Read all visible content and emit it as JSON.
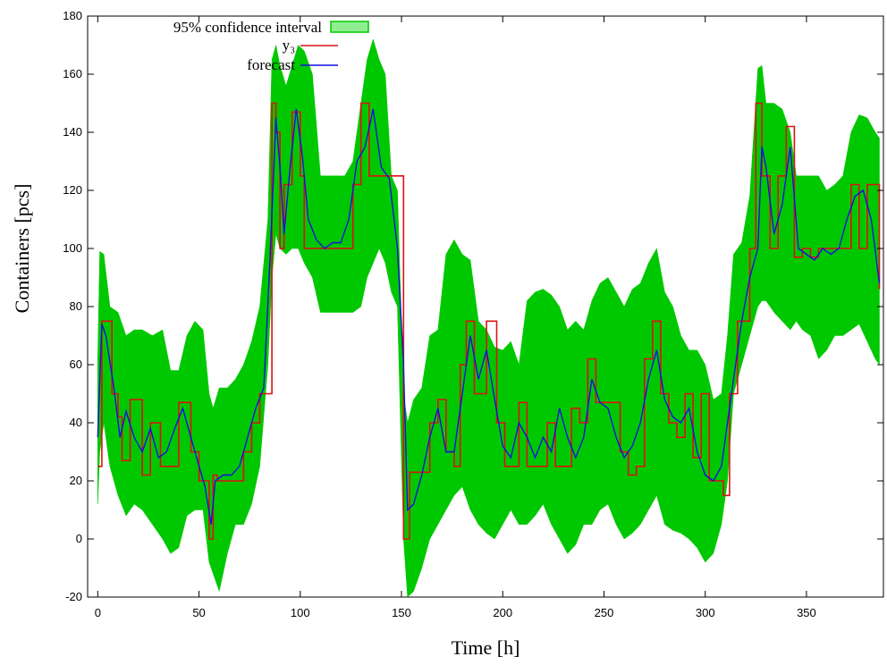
{
  "chart_data": {
    "type": "line",
    "xlabel": "Time [h]",
    "ylabel": "Containers [pcs]",
    "xlim": [
      -5,
      388
    ],
    "ylim": [
      -20,
      180
    ],
    "xticks": [
      0,
      50,
      100,
      150,
      200,
      250,
      300,
      350
    ],
    "yticks": [
      -20,
      0,
      20,
      40,
      60,
      80,
      100,
      120,
      140,
      160,
      180
    ],
    "legend_position": "top-left",
    "grid": false,
    "series": [
      {
        "name": "95% confidence interval",
        "kind": "band",
        "color": "#00c800",
        "legend_swatch_color": "#90ee90",
        "x": [
          0,
          1,
          3,
          6,
          10,
          14,
          18,
          22,
          27,
          32,
          36,
          40,
          44,
          48,
          52,
          55,
          57,
          60,
          64,
          68,
          72,
          76,
          80,
          84,
          86,
          88,
          90,
          93,
          96,
          99,
          102,
          106,
          110,
          114,
          118,
          122,
          126,
          130,
          133,
          136,
          139,
          142,
          145,
          148,
          151,
          153,
          156,
          160,
          164,
          168,
          172,
          176,
          180,
          184,
          188,
          192,
          196,
          200,
          204,
          208,
          212,
          216,
          220,
          224,
          228,
          232,
          236,
          240,
          244,
          248,
          252,
          256,
          260,
          264,
          268,
          272,
          276,
          280,
          284,
          288,
          292,
          296,
          300,
          304,
          308,
          311,
          314,
          318,
          322,
          326,
          328,
          330,
          334,
          338,
          342,
          345,
          348,
          352,
          356,
          360,
          364,
          368,
          372,
          376,
          380,
          384,
          386
        ],
        "upper": [
          62,
          99,
          98,
          80,
          78,
          70,
          72,
          72,
          70,
          72,
          58,
          58,
          70,
          75,
          72,
          50,
          45,
          52,
          52,
          55,
          60,
          68,
          80,
          110,
          165,
          170,
          163,
          156,
          163,
          170,
          168,
          160,
          125,
          125,
          125,
          125,
          130,
          150,
          165,
          172,
          165,
          160,
          125,
          120,
          50,
          40,
          48,
          52,
          70,
          72,
          98,
          103,
          98,
          96,
          75,
          72,
          66,
          65,
          68,
          60,
          82,
          85,
          86,
          84,
          80,
          72,
          75,
          72,
          82,
          88,
          90,
          85,
          80,
          86,
          88,
          95,
          100,
          85,
          80,
          70,
          65,
          65,
          60,
          48,
          50,
          70,
          98,
          102,
          118,
          162,
          163,
          150,
          150,
          148,
          140,
          125,
          125,
          125,
          125,
          120,
          122,
          125,
          140,
          146,
          145,
          140,
          138
        ],
        "lower": [
          12,
          30,
          40,
          25,
          15,
          8,
          12,
          10,
          5,
          0,
          -5,
          -3,
          8,
          10,
          10,
          -8,
          -12,
          -18,
          -5,
          5,
          5,
          12,
          25,
          60,
          90,
          105,
          100,
          98,
          100,
          100,
          95,
          90,
          78,
          78,
          78,
          78,
          78,
          80,
          90,
          95,
          100,
          95,
          85,
          80,
          0,
          -20,
          -18,
          -10,
          0,
          5,
          10,
          15,
          18,
          10,
          5,
          2,
          0,
          5,
          10,
          5,
          5,
          8,
          12,
          5,
          0,
          -5,
          -2,
          5,
          5,
          10,
          12,
          5,
          0,
          2,
          5,
          10,
          15,
          5,
          3,
          2,
          0,
          -3,
          -8,
          -5,
          5,
          20,
          50,
          60,
          70,
          80,
          82,
          82,
          78,
          75,
          72,
          75,
          72,
          70,
          62,
          65,
          70,
          70,
          72,
          74,
          68,
          62,
          60
        ]
      },
      {
        "name": "y₃",
        "kind": "step",
        "color": "#dd1111",
        "x": [
          0,
          2,
          7,
          10,
          12,
          16,
          22,
          26,
          31,
          37,
          40,
          46,
          50,
          55,
          57,
          59,
          63,
          72,
          76,
          80,
          84,
          86,
          88,
          90,
          92,
          96,
          100,
          102,
          106,
          110,
          114,
          126,
          130,
          134,
          138,
          142,
          146,
          151,
          154,
          159,
          164,
          168,
          172,
          176,
          179,
          182,
          186,
          192,
          197,
          201,
          204,
          208,
          212,
          218,
          222,
          226,
          230,
          234,
          238,
          242,
          246,
          250,
          254,
          258,
          262,
          266,
          270,
          274,
          278,
          282,
          286,
          290,
          294,
          298,
          302,
          306,
          309,
          312,
          316,
          322,
          325,
          328,
          332,
          336,
          340,
          344,
          348,
          352,
          356,
          360,
          364,
          368,
          372,
          376,
          380,
          384,
          386
        ],
        "values": [
          25,
          75,
          50,
          42,
          27,
          48,
          22,
          40,
          25,
          25,
          47,
          30,
          20,
          0,
          22,
          20,
          20,
          30,
          40,
          50,
          50,
          150,
          140,
          100,
          122,
          147,
          125,
          100,
          100,
          100,
          100,
          122,
          150,
          125,
          125,
          125,
          125,
          0,
          23,
          23,
          40,
          48,
          30,
          25,
          60,
          75,
          50,
          75,
          40,
          25,
          25,
          47,
          25,
          25,
          40,
          25,
          25,
          45,
          40,
          62,
          47,
          47,
          47,
          30,
          22,
          25,
          62,
          75,
          50,
          40,
          35,
          50,
          28,
          50,
          20,
          20,
          15,
          50,
          75,
          100,
          150,
          125,
          100,
          125,
          142,
          97,
          100,
          97,
          100,
          100,
          100,
          100,
          122,
          100,
          122,
          122,
          86
        ]
      },
      {
        "name": "forecast",
        "kind": "line",
        "color": "#1111dd",
        "x": [
          0,
          2,
          4,
          8,
          11,
          14,
          18,
          22,
          26,
          30,
          34,
          38,
          42,
          46,
          50,
          53,
          56,
          58,
          62,
          66,
          70,
          74,
          78,
          82,
          85,
          88,
          90,
          92,
          95,
          98,
          101,
          104,
          108,
          112,
          116,
          120,
          124,
          128,
          132,
          136,
          140,
          144,
          148,
          151,
          153,
          156,
          160,
          164,
          168,
          172,
          176,
          180,
          184,
          188,
          192,
          196,
          200,
          204,
          208,
          212,
          216,
          220,
          224,
          228,
          232,
          236,
          240,
          244,
          248,
          252,
          256,
          260,
          264,
          268,
          272,
          276,
          280,
          284,
          288,
          292,
          296,
          300,
          304,
          308,
          311,
          314,
          318,
          322,
          326,
          328,
          330,
          334,
          338,
          342,
          346,
          350,
          354,
          358,
          362,
          366,
          370,
          374,
          378,
          382,
          386
        ],
        "values": [
          35,
          74,
          70,
          52,
          35,
          44,
          35,
          30,
          38,
          28,
          30,
          38,
          45,
          35,
          25,
          18,
          5,
          20,
          22,
          22,
          25,
          35,
          45,
          52,
          95,
          145,
          128,
          105,
          128,
          148,
          132,
          110,
          103,
          100,
          102,
          102,
          110,
          130,
          135,
          148,
          128,
          124,
          100,
          60,
          10,
          12,
          22,
          35,
          45,
          30,
          30,
          50,
          70,
          55,
          65,
          48,
          32,
          28,
          40,
          35,
          28,
          35,
          30,
          45,
          35,
          28,
          35,
          55,
          47,
          45,
          35,
          28,
          32,
          40,
          55,
          65,
          48,
          42,
          40,
          45,
          30,
          22,
          20,
          25,
          40,
          55,
          75,
          90,
          100,
          135,
          128,
          105,
          115,
          135,
          100,
          98,
          96,
          100,
          98,
          100,
          110,
          118,
          120,
          110,
          88
        ]
      }
    ]
  }
}
